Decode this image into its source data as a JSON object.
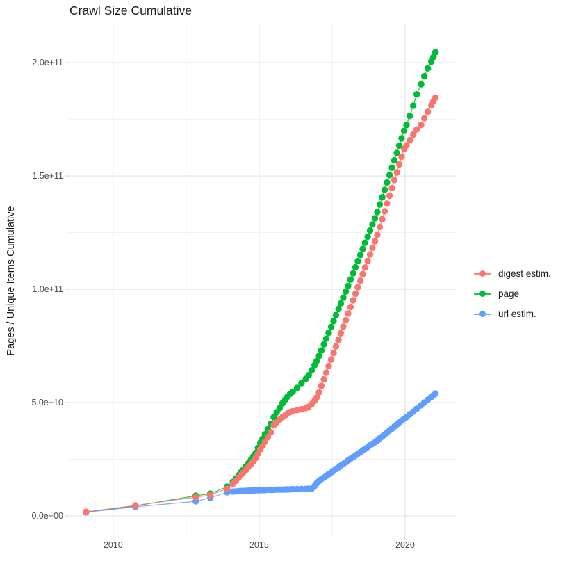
{
  "title": "Crawl Size Cumulative",
  "y_axis": {
    "title": "Pages / Unique Items Cumulative",
    "ticks": [
      {
        "label": "0.0e+00",
        "value_e9": 0
      },
      {
        "label": "5.0e+10",
        "value_e9": 50
      },
      {
        "label": "1.0e+11",
        "value_e9": 100
      },
      {
        "label": "1.5e+11",
        "value_e9": 150
      },
      {
        "label": "2.0e+11",
        "value_e9": 200
      }
    ],
    "minor_values_e9": [
      25,
      75,
      125,
      175
    ]
  },
  "x_axis": {
    "ticks": [
      {
        "label": "2010",
        "value": 2010
      },
      {
        "label": "2015",
        "value": 2015
      },
      {
        "label": "2020",
        "value": 2020
      }
    ],
    "minor_values": [
      2012.5,
      2017.5
    ]
  },
  "legend": {
    "items": [
      {
        "label": "digest estim.",
        "color": "#F8766D"
      },
      {
        "label": "page",
        "color": "#00BA38"
      },
      {
        "label": "url estim.",
        "color": "#619CFF"
      }
    ]
  },
  "style_colors": {
    "grid_major": "#e3e3e3",
    "grid_minor": "#f1f1f1",
    "tick_mark": "#d2d2d2",
    "axis_text": "#4d4d4d",
    "title_text": "#1a1a1a"
  },
  "chart_data": {
    "type": "scatter",
    "title": "Crawl Size Cumulative",
    "xlabel": "",
    "ylabel": "Pages / Unique Items Cumulative",
    "legend_position": "right",
    "grid": true,
    "values_unit": "1e9 (billions of pages / unique items)",
    "xlim": [
      2008.48,
      2021.74
    ],
    "ylim_e9": [
      -9.2,
      216.9
    ],
    "x_years": [
      2009.07,
      2010.76,
      2012.83,
      2013.33,
      2013.9,
      2014.1,
      2014.2,
      2014.3,
      2014.37,
      2014.45,
      2014.55,
      2014.63,
      2014.72,
      2014.8,
      2014.88,
      2014.96,
      2015.04,
      2015.12,
      2015.2,
      2015.3,
      2015.4,
      2015.5,
      2015.6,
      2015.7,
      2015.8,
      2015.9,
      2015.97,
      2016.06,
      2016.15,
      2016.3,
      2016.45,
      2016.6,
      2016.7,
      2016.8,
      2016.9,
      2016.97,
      2017.05,
      2017.13,
      2017.22,
      2017.3,
      2017.38,
      2017.47,
      2017.55,
      2017.63,
      2017.72,
      2017.8,
      2017.88,
      2017.97,
      2018.05,
      2018.13,
      2018.22,
      2018.3,
      2018.38,
      2018.47,
      2018.55,
      2018.63,
      2018.72,
      2018.8,
      2018.88,
      2018.97,
      2019.05,
      2019.13,
      2019.22,
      2019.3,
      2019.38,
      2019.47,
      2019.55,
      2019.63,
      2019.72,
      2019.8,
      2019.88,
      2019.97,
      2020.05,
      2020.16,
      2020.28,
      2020.4,
      2020.55,
      2020.66,
      2020.78,
      2020.9,
      2020.97,
      2021.04
    ],
    "series": [
      {
        "name": "digest estim.",
        "color": "#F8766D",
        "values_e9": [
          1.8,
          4.6,
          8.3,
          9.2,
          12.0,
          14.2,
          15.5,
          16.9,
          18.0,
          19.0,
          20.3,
          21.5,
          22.8,
          24.1,
          25.5,
          27.4,
          29.4,
          30.9,
          32.7,
          34.8,
          36.9,
          40.0,
          41.3,
          42.5,
          43.6,
          44.5,
          45.2,
          45.8,
          46.2,
          46.7,
          47.1,
          47.6,
          48.2,
          49.3,
          50.8,
          52.2,
          54.5,
          57.4,
          60.3,
          63.2,
          66.1,
          69.0,
          71.9,
          74.8,
          77.7,
          80.6,
          83.5,
          86.4,
          89.3,
          92.2,
          95.1,
          98.0,
          100.9,
          103.8,
          106.7,
          109.6,
          112.5,
          115.4,
          118.3,
          121.2,
          124.0,
          127.5,
          130.9,
          134.4,
          137.8,
          141.3,
          144.7,
          148.2,
          151.6,
          155.1,
          158.5,
          162.0,
          163.5,
          165.8,
          168.3,
          170.5,
          172.5,
          175.5,
          178.3,
          181.2,
          183.0,
          184.6
        ]
      },
      {
        "name": "page",
        "color": "#00BA38",
        "values_e9": [
          1.7,
          4.4,
          8.9,
          9.8,
          12.9,
          15.0,
          16.5,
          18.0,
          19.2,
          20.3,
          21.8,
          23.2,
          24.7,
          26.2,
          27.8,
          30.0,
          32.3,
          34.0,
          36.0,
          38.3,
          40.6,
          43.6,
          45.7,
          47.5,
          49.7,
          51.4,
          52.6,
          53.8,
          54.8,
          56.5,
          58.6,
          60.5,
          62.1,
          64.2,
          66.5,
          68.3,
          70.6,
          73.0,
          75.7,
          78.2,
          80.8,
          83.4,
          86.0,
          88.6,
          91.3,
          93.8,
          96.3,
          99.0,
          101.5,
          104.3,
          107.0,
          109.7,
          112.4,
          115.1,
          117.8,
          120.5,
          123.2,
          125.9,
          128.6,
          131.3,
          134.1,
          137.4,
          140.6,
          143.9,
          147.1,
          150.4,
          153.6,
          156.9,
          160.1,
          163.4,
          166.6,
          169.9,
          172.5,
          176.5,
          181.0,
          186.0,
          190.5,
          194.0,
          197.5,
          200.5,
          202.5,
          204.6
        ]
      },
      {
        "name": "url estim.",
        "color": "#619CFF",
        "values_e9": [
          1.6,
          4.0,
          6.4,
          8.0,
          10.4,
          10.7,
          10.8,
          10.9,
          11.0,
          11.0,
          11.1,
          11.1,
          11.2,
          11.2,
          11.3,
          11.3,
          11.4,
          11.4,
          11.4,
          11.5,
          11.5,
          11.5,
          11.6,
          11.6,
          11.6,
          11.7,
          11.7,
          11.7,
          11.8,
          11.8,
          11.9,
          11.9,
          12.0,
          12.0,
          13.2,
          14.4,
          15.4,
          16.2,
          16.9,
          17.7,
          18.4,
          19.2,
          19.9,
          20.7,
          21.4,
          22.2,
          22.9,
          23.6,
          24.5,
          25.2,
          25.9,
          26.7,
          27.4,
          28.1,
          28.9,
          29.6,
          30.3,
          31.1,
          31.8,
          32.5,
          33.3,
          34.2,
          35.0,
          35.9,
          36.8,
          37.7,
          38.5,
          39.4,
          40.3,
          41.2,
          42.0,
          42.9,
          43.6,
          44.8,
          46.0,
          47.3,
          48.8,
          50.0,
          51.3,
          52.5,
          53.2,
          54.0
        ]
      }
    ],
    "draw_order": [
      "page",
      "url estim.",
      "digest estim."
    ]
  }
}
